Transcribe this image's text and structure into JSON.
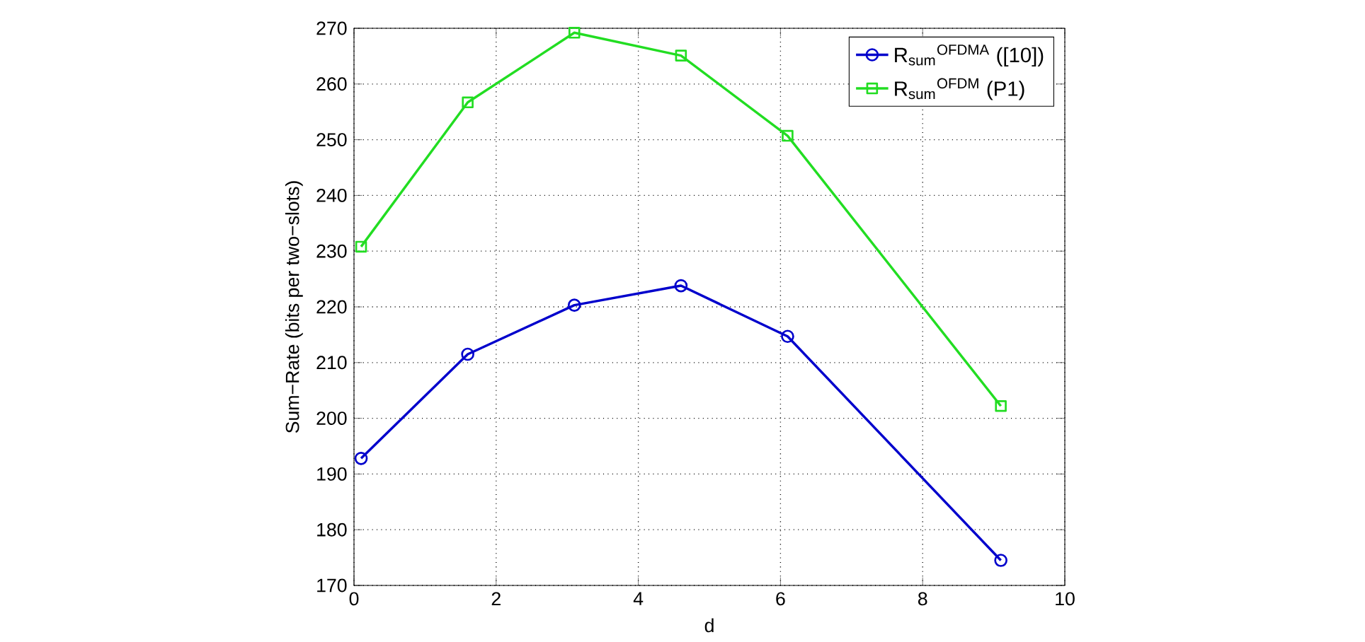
{
  "chart_data": {
    "type": "line",
    "xlabel": "d",
    "ylabel": "Sum−Rate (bits per two−slots)",
    "x": [
      0.1,
      1.6,
      3.1,
      4.6,
      6.1,
      9.1
    ],
    "series": [
      {
        "name": "R$_{sum}$$^{OFDMA}$ ([10])",
        "color": "#0000cc",
        "marker": "circle",
        "values": [
          192.8,
          211.5,
          220.3,
          223.8,
          214.7,
          174.5
        ]
      },
      {
        "name": "R$_{sum}$$^{OFDM}$ (P1)",
        "color": "#22dd22",
        "marker": "square",
        "values": [
          230.8,
          256.7,
          269.2,
          265.1,
          250.7,
          202.2
        ]
      }
    ],
    "xlim": [
      0,
      10
    ],
    "xticks": [
      0,
      2,
      4,
      6,
      8,
      10
    ],
    "ylim": [
      170,
      270
    ],
    "yticks": [
      170,
      180,
      190,
      200,
      210,
      220,
      230,
      240,
      250,
      260,
      270
    ],
    "grid": true,
    "legend": "top right",
    "line_style": "solid"
  }
}
